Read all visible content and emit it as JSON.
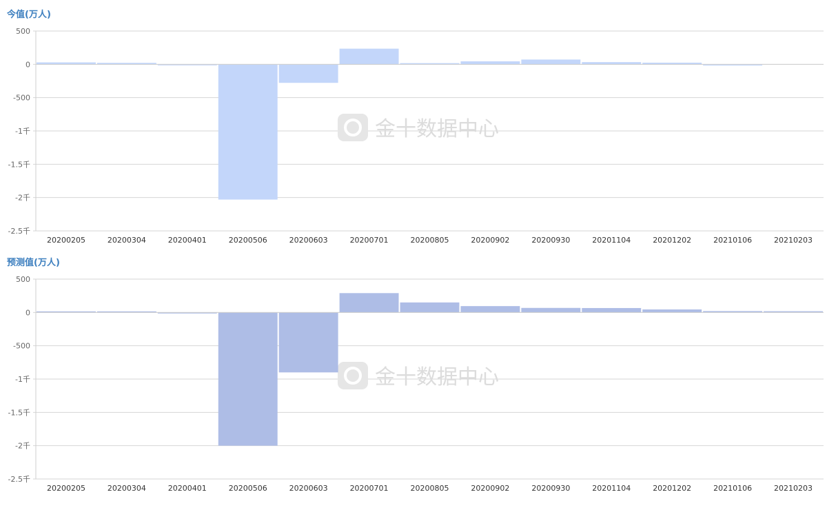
{
  "watermark": "金十数据中心",
  "chart_data": [
    {
      "type": "bar",
      "title": "今值(万人)",
      "color": "#c3d6fa",
      "categories": [
        "20200205",
        "20200304",
        "20200401",
        "20200506",
        "20200603",
        "20200701",
        "20200805",
        "20200902",
        "20200930",
        "20201104",
        "20201202",
        "20210106",
        "20210203"
      ],
      "values": [
        29,
        22,
        -14,
        -2030,
        -278,
        235,
        18,
        45,
        72,
        33,
        25,
        -18,
        0
      ],
      "ylim": [
        -2500,
        500
      ],
      "yticks": [
        500,
        0,
        -500,
        -1000,
        -1500,
        -2000,
        -2500
      ],
      "ytick_labels": [
        "500",
        "0",
        "-500",
        "-1千",
        "-1.5千",
        "-2千",
        "-2.5千"
      ],
      "grid": true
    },
    {
      "type": "bar",
      "title": "预测值(万人)",
      "color": "#aebde6",
      "categories": [
        "20200205",
        "20200304",
        "20200401",
        "20200506",
        "20200603",
        "20200701",
        "20200805",
        "20200902",
        "20200930",
        "20201104",
        "20201202",
        "20210106",
        "20210203"
      ],
      "values": [
        16,
        16,
        -13,
        -2000,
        -900,
        290,
        150,
        95,
        68,
        66,
        45,
        20,
        18
      ],
      "ylim": [
        -2500,
        500
      ],
      "yticks": [
        500,
        0,
        -500,
        -1000,
        -1500,
        -2000,
        -2500
      ],
      "ytick_labels": [
        "500",
        "0",
        "-500",
        "-1千",
        "-1.5千",
        "-2千",
        "-2.5千"
      ],
      "grid": true
    }
  ]
}
